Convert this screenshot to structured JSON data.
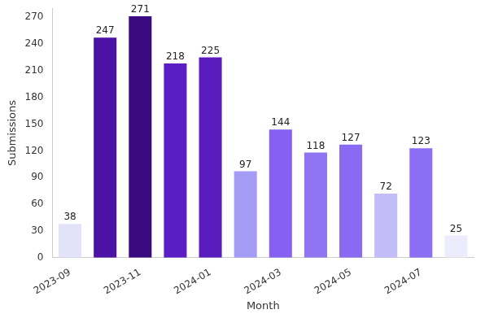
{
  "chart_data": {
    "type": "bar",
    "x_label": "Month",
    "y_label": "Submissions",
    "categories": [
      "2023-09",
      null,
      "2023-11",
      null,
      "2024-01",
      null,
      "2024-03",
      null,
      "2024-05",
      null,
      "2024-07",
      null
    ],
    "values": [
      38,
      247,
      271,
      218,
      225,
      97,
      144,
      118,
      127,
      72,
      123,
      25
    ],
    "colors": [
      "#e2e2f8",
      "#4c12a6",
      "#3a0a80",
      "#5a1ec4",
      "#5a1cbe",
      "#a49cf4",
      "#8660f2",
      "#9074f2",
      "#8a6af2",
      "#c2bcf8",
      "#8c6ef2",
      "#ececfc"
    ],
    "ylim": [
      0,
      280
    ],
    "yticks": [
      0,
      30,
      60,
      90,
      120,
      150,
      180,
      210,
      240,
      270
    ],
    "grid": false,
    "data_labels": true
  }
}
